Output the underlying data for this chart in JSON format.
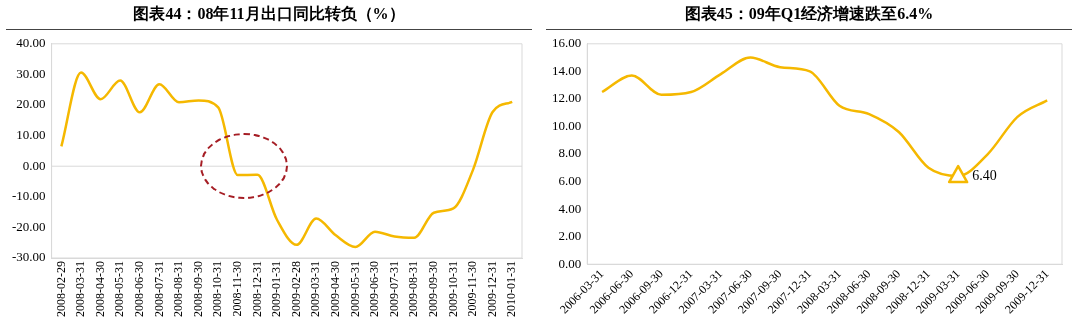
{
  "chart_data": [
    {
      "type": "line",
      "title": "图表44：08年11月出口同比转负（%）",
      "categories": [
        "2008-02-29",
        "2008-03-31",
        "2008-04-30",
        "2008-05-31",
        "2008-06-30",
        "2008-07-31",
        "2008-08-31",
        "2008-09-30",
        "2008-10-31",
        "2008-11-30",
        "2008-12-31",
        "2009-01-31",
        "2009-02-28",
        "2009-03-31",
        "2009-04-30",
        "2009-05-31",
        "2009-06-30",
        "2009-07-31",
        "2009-08-31",
        "2009-09-30",
        "2009-10-31",
        "2009-11-30",
        "2009-12-31",
        "2010-01-31"
      ],
      "series": [
        {
          "color": "#f5b800",
          "values": [
            6.5,
            30.6,
            21.9,
            28.0,
            17.6,
            26.8,
            20.9,
            21.5,
            19.2,
            -2.9,
            -2.8,
            -17.5,
            -25.7,
            -17.1,
            -22.6,
            -26.4,
            -21.4,
            -23.0,
            -23.4,
            -15.2,
            -13.8,
            -1.2,
            17.7,
            21.0
          ]
        }
      ],
      "ylim": [
        -30,
        40
      ],
      "yticks": [
        {
          "value": -30,
          "label": "-30.00"
        },
        {
          "value": -20,
          "label": "-20.00"
        },
        {
          "value": -10,
          "label": "-10.00"
        },
        {
          "value": 0,
          "label": "0.00"
        },
        {
          "value": 10,
          "label": "10.00"
        },
        {
          "value": 20,
          "label": "20.00"
        },
        {
          "value": 30,
          "label": "30.00"
        },
        {
          "value": 40,
          "label": "40.00"
        }
      ],
      "ref_lines": [
        {
          "axis": "y",
          "value": 0,
          "color": "#d9d9d9"
        }
      ],
      "marker": "none",
      "line_style": "solid",
      "grid": false,
      "legend": false
    },
    {
      "type": "line",
      "title": "图表45：09年Q1经济增速跌至6.4%",
      "categories": [
        "2006-03-31",
        "2006-06-30",
        "2006-09-30",
        "2006-12-31",
        "2007-03-31",
        "2007-06-30",
        "2007-09-30",
        "2007-12-31",
        "2008-03-31",
        "2008-06-30",
        "2008-09-30",
        "2008-12-31",
        "2009-03-31",
        "2009-06-30",
        "2009-09-30",
        "2009-12-31"
      ],
      "series": [
        {
          "color": "#f5b800",
          "values": [
            12.5,
            13.7,
            12.3,
            12.5,
            13.8,
            15.0,
            14.3,
            14.0,
            11.5,
            10.9,
            9.6,
            7.0,
            6.4,
            8.0,
            10.7,
            11.9
          ],
          "marker": "none"
        }
      ],
      "annotations": [
        {
          "text": "6.40",
          "x": "2009-03-31",
          "y": 6.4
        }
      ],
      "ylim": [
        0,
        16
      ],
      "yticks": [
        {
          "value": 0,
          "label": "0.00"
        },
        {
          "value": 2,
          "label": "2.00"
        },
        {
          "value": 4,
          "label": "4.00"
        },
        {
          "value": 6,
          "label": "6.00"
        },
        {
          "value": 8,
          "label": "8.00"
        },
        {
          "value": 10,
          "label": "10.00"
        },
        {
          "value": 12,
          "label": "12.00"
        },
        {
          "value": 14,
          "label": "14.00"
        },
        {
          "value": 16,
          "label": "16.00"
        }
      ],
      "line_style": "solid",
      "grid": false,
      "legend": false
    }
  ]
}
